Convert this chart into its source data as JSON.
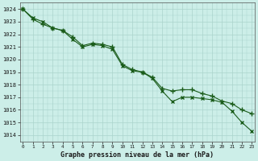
{
  "title": "Graphe pression niveau de la mer (hPa)",
  "background_color": "#cceee8",
  "grid_color": "#aad4cc",
  "line_color": "#1a5c1a",
  "x_labels": [
    "0",
    "1",
    "2",
    "3",
    "4",
    "5",
    "6",
    "7",
    "8",
    "9",
    "10",
    "11",
    "12",
    "13",
    "14",
    "15",
    "16",
    "17",
    "18",
    "19",
    "20",
    "21",
    "22",
    "23"
  ],
  "ylim": [
    1013.5,
    1024.5
  ],
  "yticks": [
    1014,
    1015,
    1016,
    1017,
    1018,
    1019,
    1020,
    1021,
    1022,
    1023,
    1024
  ],
  "line1": [
    1024.0,
    1023.3,
    1023.0,
    1022.5,
    1022.3,
    1021.6,
    1021.0,
    1021.2,
    1021.1,
    1020.8,
    1019.5,
    1019.1,
    1019.0,
    1018.5,
    1017.5,
    1016.65,
    1017.0,
    1017.0,
    1016.9,
    1016.8,
    1016.6,
    1015.9,
    1015.0,
    1014.3
  ],
  "line2": [
    1024.0,
    1023.2,
    1022.8,
    1022.5,
    1022.3,
    1021.8,
    1021.1,
    1021.3,
    1021.2,
    1021.0,
    1019.6,
    1019.2,
    1019.0,
    1018.6,
    1017.7,
    1017.5,
    1017.6,
    1017.6,
    1017.3,
    1017.1,
    1016.7,
    1016.5,
    1016.0,
    1015.7
  ],
  "xlim_left": -0.3,
  "xlim_right": 23.3
}
